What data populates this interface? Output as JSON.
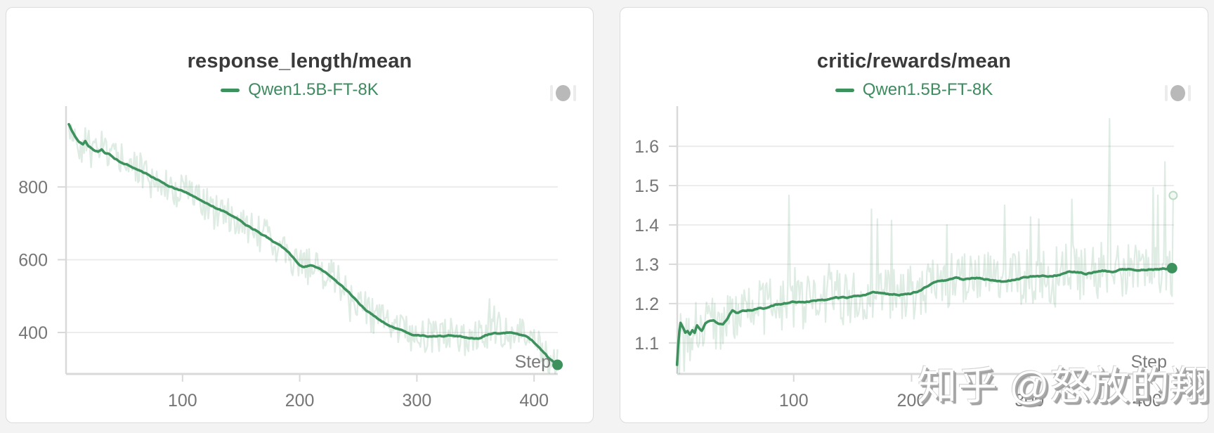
{
  "page": {
    "background": "#f3f3f4"
  },
  "watermark": {
    "text": "知乎 @怒放的翔"
  },
  "colors": {
    "accent_green": "#3d915d",
    "legend_text": "#3d8b5f",
    "raw_line": "rgba(61,145,93,0.17)",
    "title_text": "#3a3a3a",
    "tick_text": "#767676",
    "grid_line": "#ececec",
    "axis_line": "#d9d9d9",
    "panel_bg": "#ffffff",
    "handle_gray": "#b9b9b9"
  },
  "chart_data": [
    {
      "type": "line",
      "title": "response_length/mean",
      "legend_label": "Qwen1.5B-FT-8K",
      "legend_position": "top-center",
      "xlabel": "Step",
      "ylabel": "",
      "grid": true,
      "x_ticks": [
        100,
        200,
        300,
        400
      ],
      "y_ticks": [
        400,
        600,
        800
      ],
      "xlim": [
        0,
        420
      ],
      "ylim": [
        286,
        1022
      ],
      "series": [
        {
          "name": "Qwen1.5B-FT-8K",
          "role": "smoothed",
          "end_step": 420,
          "end_value": 311,
          "keypoints": [
            [
              3,
              972
            ],
            [
              5,
              958
            ],
            [
              8,
              940
            ],
            [
              12,
              925
            ],
            [
              15,
              918
            ],
            [
              17,
              926
            ],
            [
              20,
              912
            ],
            [
              24,
              903
            ],
            [
              28,
              897
            ],
            [
              31,
              903
            ],
            [
              34,
              893
            ],
            [
              38,
              889
            ],
            [
              42,
              880
            ],
            [
              46,
              872
            ],
            [
              50,
              866
            ],
            [
              54,
              860
            ],
            [
              58,
              855
            ],
            [
              62,
              848
            ],
            [
              66,
              841
            ],
            [
              70,
              834
            ],
            [
              74,
              826
            ],
            [
              78,
              821
            ],
            [
              82,
              814
            ],
            [
              86,
              808
            ],
            [
              90,
              801
            ],
            [
              94,
              795
            ],
            [
              98,
              790
            ],
            [
              102,
              784
            ],
            [
              106,
              778
            ],
            [
              110,
              773
            ],
            [
              114,
              766
            ],
            [
              118,
              759
            ],
            [
              122,
              753
            ],
            [
              126,
              747
            ],
            [
              130,
              740
            ],
            [
              134,
              734
            ],
            [
              138,
              727
            ],
            [
              142,
              719
            ],
            [
              146,
              711
            ],
            [
              150,
              703
            ],
            [
              154,
              695
            ],
            [
              158,
              688
            ],
            [
              162,
              681
            ],
            [
              166,
              672
            ],
            [
              170,
              664
            ],
            [
              174,
              656
            ],
            [
              178,
              648
            ],
            [
              182,
              639
            ],
            [
              186,
              631
            ],
            [
              190,
              621
            ],
            [
              194,
              607
            ],
            [
              197,
              594
            ],
            [
              200,
              583
            ],
            [
              203,
              577
            ],
            [
              207,
              580
            ],
            [
              211,
              582
            ],
            [
              215,
              577
            ],
            [
              219,
              571
            ],
            [
              223,
              563
            ],
            [
              227,
              553
            ],
            [
              231,
              542
            ],
            [
              235,
              530
            ],
            [
              239,
              517
            ],
            [
              243,
              505
            ],
            [
              247,
              492
            ],
            [
              251,
              480
            ],
            [
              255,
              468
            ],
            [
              259,
              457
            ],
            [
              263,
              447
            ],
            [
              267,
              438
            ],
            [
              271,
              430
            ],
            [
              275,
              423
            ],
            [
              279,
              416
            ],
            [
              283,
              410
            ],
            [
              287,
              404
            ],
            [
              291,
              399
            ],
            [
              295,
              396
            ],
            [
              299,
              393
            ],
            [
              303,
              391
            ],
            [
              307,
              390
            ],
            [
              311,
              390
            ],
            [
              315,
              391
            ],
            [
              319,
              390
            ],
            [
              323,
              389
            ],
            [
              327,
              390
            ],
            [
              331,
              389
            ],
            [
              335,
              389
            ],
            [
              339,
              388
            ],
            [
              343,
              386
            ],
            [
              347,
              383
            ],
            [
              351,
              381
            ],
            [
              355,
              383
            ],
            [
              359,
              392
            ],
            [
              363,
              396
            ],
            [
              367,
              398
            ],
            [
              371,
              397
            ],
            [
              375,
              398
            ],
            [
              379,
              400
            ],
            [
              383,
              399
            ],
            [
              387,
              396
            ],
            [
              391,
              393
            ],
            [
              395,
              388
            ],
            [
              399,
              378
            ],
            [
              403,
              364
            ],
            [
              407,
              349
            ],
            [
              411,
              334
            ],
            [
              415,
              322
            ],
            [
              418,
              315
            ],
            [
              420,
              311
            ]
          ]
        },
        {
          "name": "Qwen1.5B-FT-8K",
          "role": "raw",
          "last_raw_value": null,
          "noise": {
            "seed": 42,
            "amplitude": 50,
            "spike_prob": 0.05,
            "spike_scale": 2.1,
            "up_bias": 0.5
          },
          "forced_points": {
            "362": 492,
            "366": 472,
            "370": 455,
            "408": 293,
            "413": 289,
            "419": 297
          }
        }
      ]
    },
    {
      "type": "line",
      "title": "critic/rewards/mean",
      "legend_label": "Qwen1.5B-FT-8K",
      "legend_position": "top-center",
      "xlabel": "Step",
      "ylabel": "",
      "grid": true,
      "x_ticks": [
        100,
        200,
        300,
        400
      ],
      "y_ticks": [
        1.1,
        1.2,
        1.3,
        1.4,
        1.5,
        1.6
      ],
      "xlim": [
        0,
        422
      ],
      "ylim": [
        1.021,
        1.702
      ],
      "series": [
        {
          "name": "Qwen1.5B-FT-8K",
          "role": "smoothed",
          "end_step": 421,
          "end_value": 1.29,
          "keypoints": [
            [
              1,
              1.045
            ],
            [
              2,
              1.095
            ],
            [
              3,
              1.13
            ],
            [
              4,
              1.151
            ],
            [
              6,
              1.139
            ],
            [
              8,
              1.126
            ],
            [
              10,
              1.131
            ],
            [
              12,
              1.122
            ],
            [
              14,
              1.134
            ],
            [
              16,
              1.127
            ],
            [
              18,
              1.146
            ],
            [
              20,
              1.139
            ],
            [
              22,
              1.133
            ],
            [
              25,
              1.151
            ],
            [
              28,
              1.155
            ],
            [
              32,
              1.156
            ],
            [
              36,
              1.149
            ],
            [
              40,
              1.147
            ],
            [
              44,
              1.163
            ],
            [
              48,
              1.183
            ],
            [
              52,
              1.177
            ],
            [
              56,
              1.18
            ],
            [
              60,
              1.183
            ],
            [
              65,
              1.185
            ],
            [
              70,
              1.189
            ],
            [
              75,
              1.187
            ],
            [
              80,
              1.191
            ],
            [
              85,
              1.196
            ],
            [
              90,
              1.199
            ],
            [
              95,
              1.201
            ],
            [
              100,
              1.204
            ],
            [
              110,
              1.206
            ],
            [
              120,
              1.209
            ],
            [
              130,
              1.213
            ],
            [
              140,
              1.215
            ],
            [
              150,
              1.217
            ],
            [
              160,
              1.219
            ],
            [
              168,
              1.227
            ],
            [
              175,
              1.224
            ],
            [
              182,
              1.222
            ],
            [
              190,
              1.224
            ],
            [
              198,
              1.226
            ],
            [
              205,
              1.231
            ],
            [
              212,
              1.243
            ],
            [
              218,
              1.251
            ],
            [
              225,
              1.256
            ],
            [
              232,
              1.261
            ],
            [
              238,
              1.264
            ],
            [
              244,
              1.258
            ],
            [
              250,
              1.261
            ],
            [
              258,
              1.265
            ],
            [
              265,
              1.262
            ],
            [
              272,
              1.257
            ],
            [
              280,
              1.256
            ],
            [
              288,
              1.261
            ],
            [
              295,
              1.266
            ],
            [
              302,
              1.269
            ],
            [
              310,
              1.267
            ],
            [
              318,
              1.271
            ],
            [
              326,
              1.275
            ],
            [
              334,
              1.283
            ],
            [
              340,
              1.281
            ],
            [
              348,
              1.277
            ],
            [
              355,
              1.281
            ],
            [
              362,
              1.284
            ],
            [
              370,
              1.282
            ],
            [
              378,
              1.285
            ],
            [
              386,
              1.288
            ],
            [
              394,
              1.285
            ],
            [
              402,
              1.287
            ],
            [
              410,
              1.288
            ],
            [
              416,
              1.289
            ],
            [
              422,
              1.29
            ]
          ]
        },
        {
          "name": "Qwen1.5B-FT-8K",
          "role": "raw",
          "last_raw_value": 1.475,
          "noise": {
            "seed": 1337,
            "amplitude": 0.072,
            "spike_prob": 0.06,
            "spike_scale": 2.8,
            "up_bias": 0.22
          },
          "forced_points": {
            "3": 1.022,
            "7": 1.028,
            "96": 1.475,
            "166": 1.44,
            "171": 1.415,
            "230": 1.4,
            "279": 1.45,
            "301": 1.42,
            "336": 1.465,
            "368": 1.67,
            "405": 1.495,
            "415": 1.56,
            "422": 1.475
          }
        }
      ]
    }
  ]
}
